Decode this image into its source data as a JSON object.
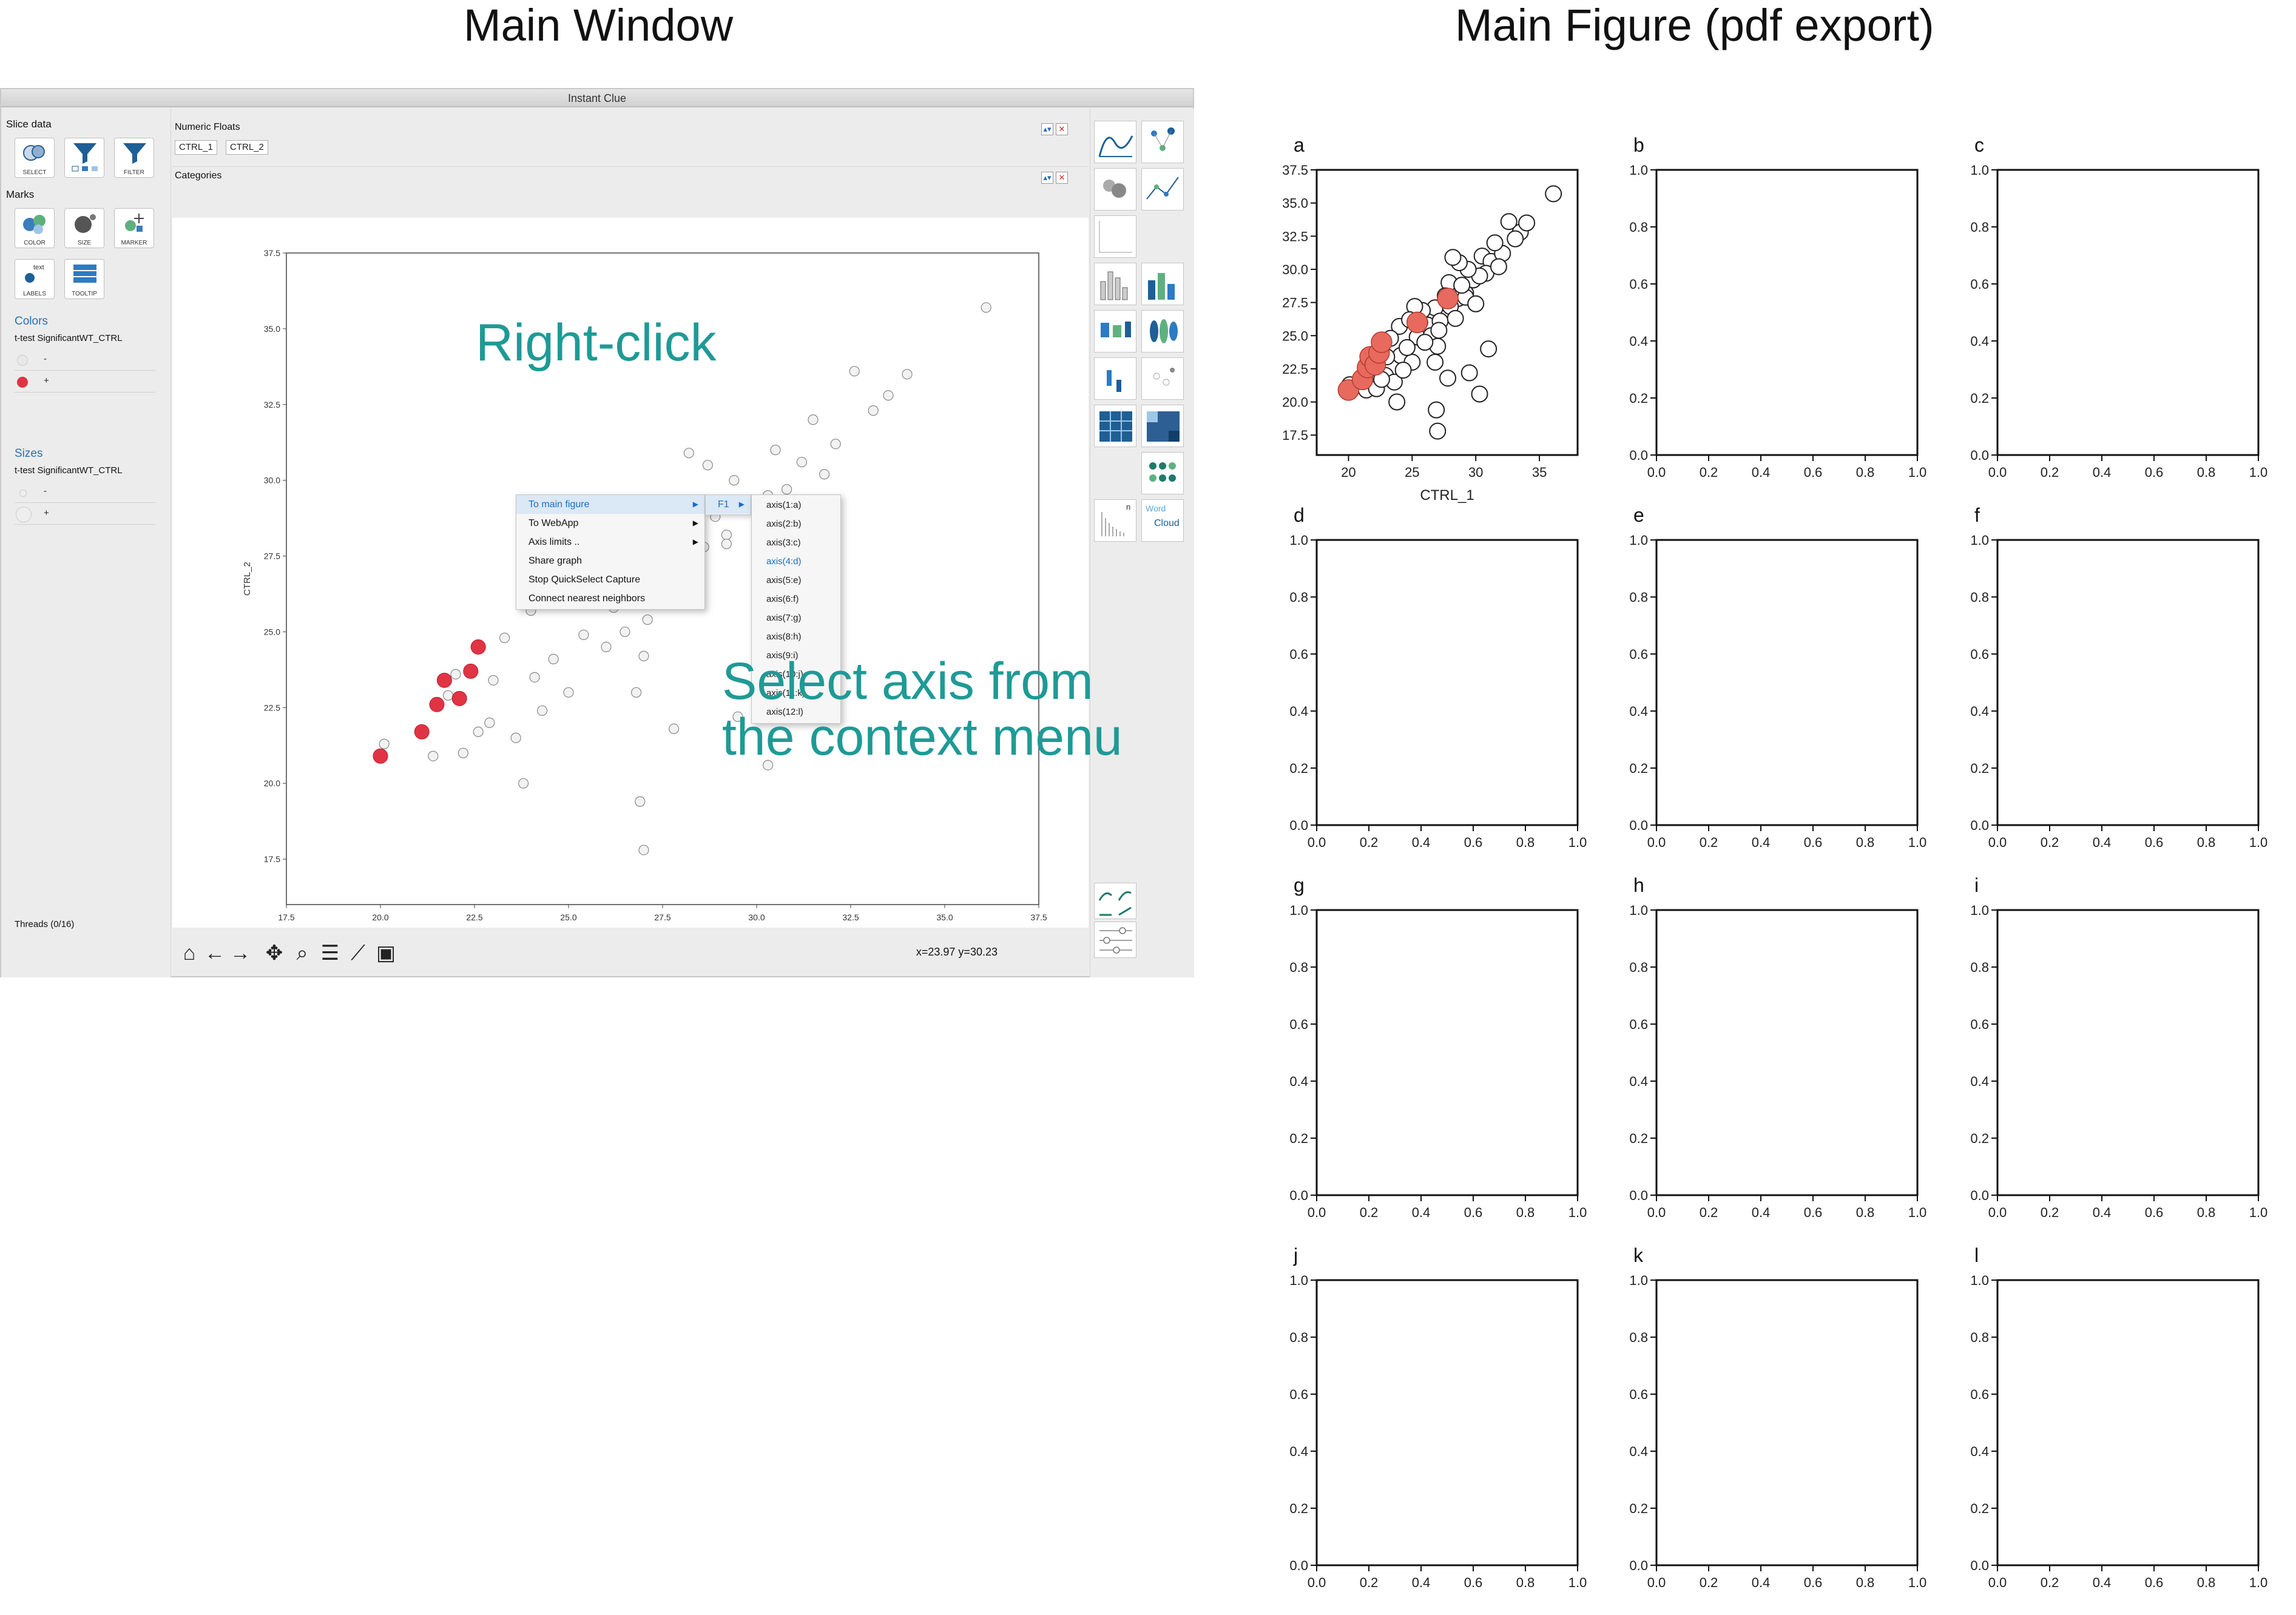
{
  "headings": {
    "left": "Main Window",
    "right": "Main Figure (pdf export)"
  },
  "window": {
    "title": "Instant Clue",
    "slice_data_label": "Slice data",
    "slice_tools": [
      "SELECT",
      "",
      "FILTER"
    ],
    "marks_label": "Marks",
    "mark_tools": [
      "COLOR",
      "SIZE",
      "MARKER"
    ],
    "mark_tools_2": [
      "LABELS",
      "TOOLTIP"
    ],
    "text_icon_label": "text",
    "colors_label": "Colors",
    "colors_column": "t-test SignificantWT_CTRL",
    "color_entries": [
      {
        "label": "-",
        "color": "#e0e0e0"
      },
      {
        "label": "+",
        "color": "#e03444"
      }
    ],
    "sizes_label": "Sizes",
    "sizes_column": "t-test SignificantWT_CTRL",
    "size_entries": [
      {
        "label": "-"
      },
      {
        "label": "+"
      }
    ],
    "threads": "Threads (0/16)",
    "numeric_label": "Numeric Floats",
    "numeric_chips": [
      "CTRL_1",
      "CTRL_2"
    ],
    "categories_label": "Categories",
    "coords": "x=23.97 y=30.23",
    "word_cloud": [
      "Word",
      "Cloud"
    ],
    "legend_n": "n"
  },
  "context_menu": {
    "items": [
      "To main figure",
      "To WebApp",
      "Axis limits ..",
      "Share graph",
      "Stop QuickSelect Capture",
      "Connect nearest neighbors"
    ],
    "figure": "F1",
    "axes": [
      "axis(1:a)",
      "axis(2:b)",
      "axis(3:c)",
      "axis(4:d)",
      "axis(5:e)",
      "axis(6:f)",
      "axis(7:g)",
      "axis(8:h)",
      "axis(9:i)",
      "axis(10:j)",
      "axis(11:k)",
      "axis(12:l)"
    ],
    "highlighted_axis": "axis(4:d)"
  },
  "annotations": {
    "right_click": "Right-click",
    "select_axis_1": "Select axis from",
    "select_axis_2": "the context menu"
  },
  "colors": {
    "accent": "#1f9a96",
    "significant": "#e03444",
    "menu_highlight": "#1a6fc2"
  },
  "chart_data": [
    {
      "type": "scatter",
      "xlabel": "CTRL_1",
      "ylabel": "CTRL_2",
      "xlim": [
        17.5,
        37.5
      ],
      "ylim": [
        16.0,
        37.5
      ],
      "xticks": [
        "17.5",
        "20.0",
        "22.5",
        "25.0",
        "27.5",
        "30.0",
        "32.5",
        "35.0",
        "37.5"
      ],
      "yticks": [
        "17.5",
        "20.0",
        "22.5",
        "25.0",
        "27.5",
        "30.0",
        "32.5",
        "35.0",
        "37.5"
      ],
      "series": [
        {
          "name": "-",
          "x": [
            24.1,
            26.8,
            29.2,
            30.5,
            25.4,
            27.9,
            22.9,
            28.6,
            31.2,
            33.5,
            36.1,
            21.4,
            23.6,
            26.2,
            28.0,
            25.0,
            27.2,
            30.8,
            32.1,
            22.2,
            24.6,
            26.5,
            29.8,
            31.8,
            34.0,
            27.0,
            28.4,
            24.0,
            29.2,
            30.3,
            33.1,
            32.6,
            25.8,
            23.0,
            21.8,
            28.9,
            26.0,
            24.3,
            22.6,
            27.6,
            29.4,
            31.5,
            26.8,
            25.2,
            23.3,
            30.0,
            28.7,
            24.8,
            27.1,
            22.0,
            20.1,
            27.0,
            30.3,
            26.9,
            29.5,
            25.6,
            23.8,
            27.8,
            31.0,
            28.2
          ],
          "y": [
            23.5,
            27.1,
            28.2,
            31.0,
            24.9,
            29.0,
            22.0,
            27.8,
            30.6,
            32.8,
            35.7,
            20.9,
            21.5,
            25.8,
            27.2,
            23.0,
            26.1,
            29.7,
            31.2,
            21.0,
            24.1,
            25.0,
            29.2,
            30.2,
            33.5,
            24.2,
            26.3,
            25.7,
            27.9,
            29.5,
            32.3,
            33.6,
            26.9,
            23.4,
            22.9,
            28.8,
            24.5,
            22.4,
            21.7,
            28.0,
            30.0,
            32.0,
            23.0,
            27.2,
            24.8,
            27.4,
            30.5,
            26.2,
            25.4,
            23.6,
            21.3,
            17.8,
            20.6,
            19.4,
            22.2,
            26.0,
            20.0,
            21.8,
            24.0,
            30.9
          ]
        },
        {
          "name": "+",
          "x": [
            20.0,
            21.1,
            21.5,
            21.7,
            22.1,
            22.4,
            22.6,
            25.4
          ],
          "y": [
            20.9,
            21.7,
            22.6,
            23.4,
            22.8,
            23.7,
            24.5,
            26.0
          ]
        }
      ]
    },
    {
      "type": "scatter",
      "xlabel": "CTRL_1",
      "ylabel": "CTRL_2",
      "xlim": [
        17.5,
        38.0
      ],
      "ylim": [
        16.0,
        37.5
      ],
      "xticks": [
        "20",
        "25",
        "30",
        "35"
      ],
      "yticks": [
        "17.5",
        "20.0",
        "22.5",
        "25.0",
        "27.5",
        "30.0",
        "32.5",
        "35.0",
        "37.5"
      ],
      "series": [
        {
          "name": "-",
          "x": [
            24.1,
            26.8,
            29.2,
            30.5,
            25.4,
            27.9,
            22.9,
            28.6,
            31.2,
            33.5,
            36.1,
            21.4,
            23.6,
            26.2,
            28.0,
            25.0,
            27.2,
            30.8,
            32.1,
            22.2,
            24.6,
            26.5,
            29.8,
            31.8,
            34.0,
            27.0,
            28.4,
            24.0,
            29.2,
            30.3,
            33.1,
            32.6,
            25.8,
            23.0,
            21.8,
            28.9,
            26.0,
            24.3,
            22.6,
            27.6,
            29.4,
            31.5,
            26.8,
            25.2,
            23.3,
            30.0,
            28.7,
            24.8,
            27.1,
            22.0,
            20.1,
            27.0,
            30.3,
            26.9,
            29.5,
            25.6,
            23.8,
            27.8,
            31.0,
            28.2
          ],
          "y": [
            23.5,
            27.1,
            28.2,
            31.0,
            24.9,
            29.0,
            22.0,
            27.8,
            30.6,
            32.8,
            35.7,
            20.9,
            21.5,
            25.8,
            27.2,
            23.0,
            26.1,
            29.7,
            31.2,
            21.0,
            24.1,
            25.0,
            29.2,
            30.2,
            33.5,
            24.2,
            26.3,
            25.7,
            27.9,
            29.5,
            32.3,
            33.6,
            26.9,
            23.4,
            22.9,
            28.8,
            24.5,
            22.4,
            21.7,
            28.0,
            30.0,
            32.0,
            23.0,
            27.2,
            24.8,
            27.4,
            30.5,
            26.2,
            25.4,
            23.6,
            21.3,
            17.8,
            20.6,
            19.4,
            22.2,
            26.0,
            20.0,
            21.8,
            24.0,
            30.9
          ]
        },
        {
          "name": "+",
          "x": [
            20.0,
            21.1,
            21.5,
            21.7,
            22.1,
            22.4,
            22.6,
            25.4,
            27.8
          ],
          "y": [
            20.9,
            21.7,
            22.6,
            23.4,
            22.8,
            23.7,
            24.5,
            26.0,
            27.8
          ]
        }
      ]
    },
    {
      "type": "scatter",
      "panels": [
        "b",
        "c",
        "d",
        "e",
        "f",
        "g",
        "h",
        "i",
        "j",
        "k",
        "l"
      ],
      "xlim": [
        0.0,
        1.0
      ],
      "ylim": [
        0.0,
        1.0
      ],
      "xticks": [
        "0.0",
        "0.2",
        "0.4",
        "0.6",
        "0.8",
        "1.0"
      ],
      "yticks": [
        "0.0",
        "0.2",
        "0.4",
        "0.6",
        "0.8",
        "1.0"
      ],
      "series": []
    }
  ],
  "panel_letters": [
    "a",
    "b",
    "c",
    "d",
    "e",
    "f",
    "g",
    "h",
    "i",
    "j",
    "k",
    "l"
  ]
}
